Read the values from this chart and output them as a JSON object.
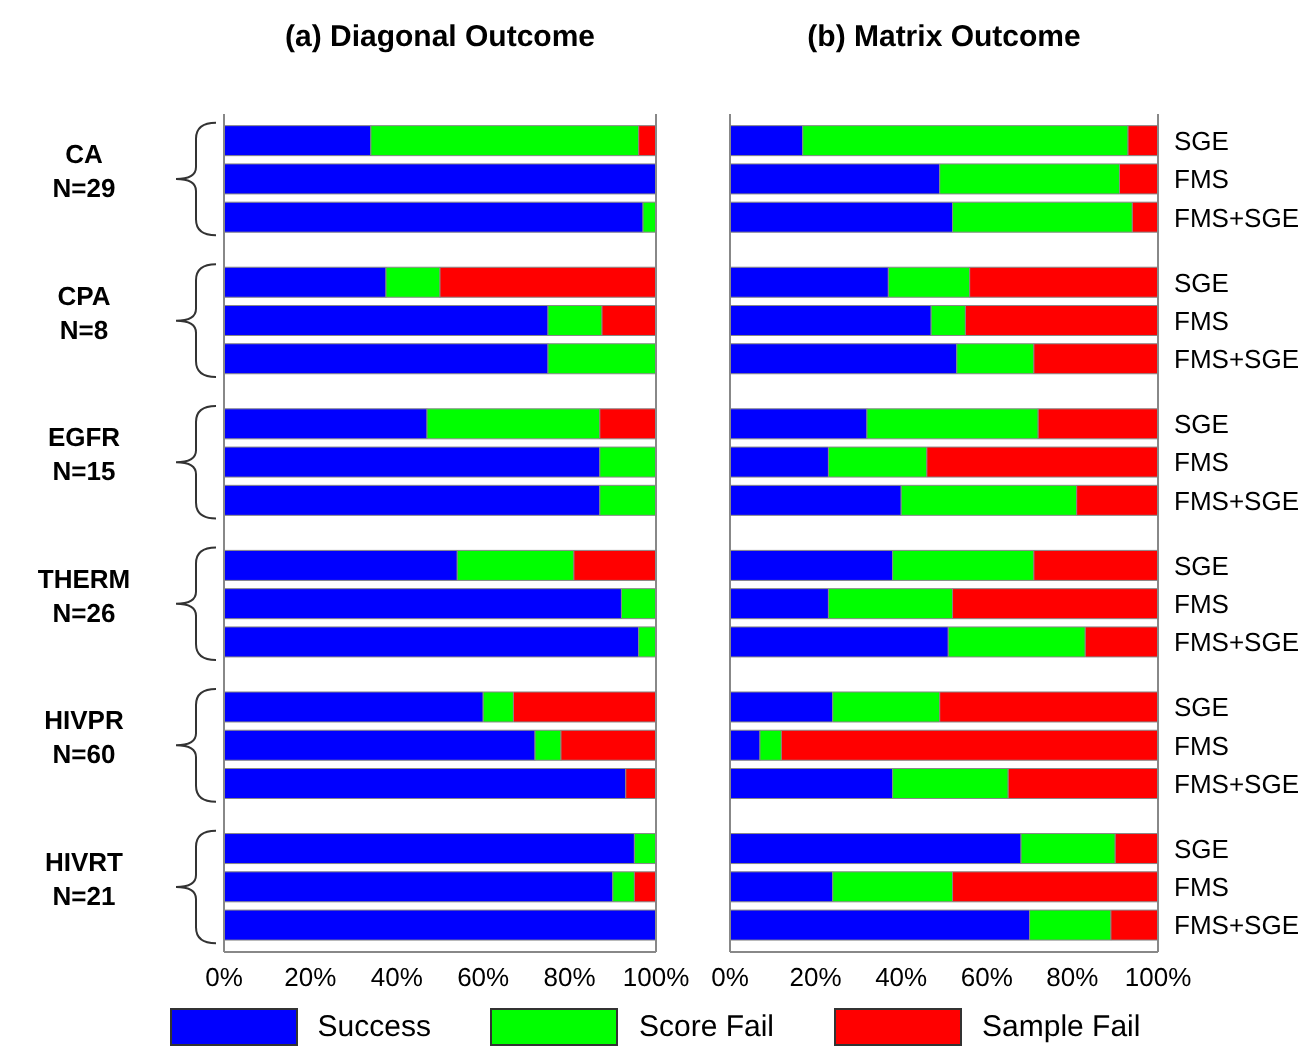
{
  "chart_data": [
    {
      "type": "bar",
      "orientation": "horizontal",
      "stacked": true,
      "title": "(a) Diagonal Outcome",
      "categories": [
        null,
        null,
        null,
        null,
        null,
        null,
        null,
        null,
        null,
        null,
        null,
        null,
        null,
        null,
        null,
        null,
        null,
        null
      ],
      "series": [
        {
          "color": "#0000ff",
          "values": [
            34,
            100,
            97,
            37.5,
            75,
            75,
            47,
            87,
            87,
            54,
            92,
            96,
            60,
            72,
            93,
            95,
            90,
            100
          ]
        },
        {
          "color": "#00ff00",
          "values": [
            62,
            0,
            3,
            12.5,
            12.5,
            25,
            40,
            13,
            13,
            27,
            8,
            4,
            7,
            6,
            0,
            5,
            5,
            0
          ]
        },
        {
          "color": "#ff0000",
          "values": [
            4,
            0,
            0,
            50,
            12.5,
            0,
            13,
            0,
            0,
            19,
            0,
            0,
            33,
            22,
            7,
            0,
            5,
            0
          ]
        }
      ],
      "xlim": [
        0,
        100
      ],
      "xticks": [
        {
          "value": 0,
          "label": "0%"
        },
        {
          "value": 20,
          "label": "20%"
        },
        {
          "value": 40,
          "label": "40%"
        },
        {
          "value": 60,
          "label": "60%"
        },
        {
          "value": 80,
          "label": "80%"
        },
        {
          "value": 100,
          "label": "100%"
        }
      ],
      "tick_labels": "x",
      "annotations": [
        "CA\nN=29",
        "CPA\nN=8",
        "EGFR\nN=15",
        "THERM\nN=26",
        "HIVPR\nN=60",
        "HIVRT\nN=21"
      ]
    },
    {
      "type": "bar",
      "orientation": "horizontal",
      "stacked": true,
      "title": "(b) Matrix Outcome",
      "categories": [
        "SGE",
        "FMS",
        "FMS+SGE",
        "SGE",
        "FMS",
        "FMS+SGE",
        "SGE",
        "FMS",
        "FMS+SGE",
        "SGE",
        "FMS",
        "FMS+SGE",
        "SGE",
        "FMS",
        "FMS+SGE",
        "SGE",
        "FMS",
        "FMS+SGE"
      ],
      "series": [
        {
          "name": "Success",
          "color": "#0000ff",
          "values": [
            17,
            49,
            52,
            37,
            47,
            53,
            32,
            23,
            40,
            38,
            23,
            51,
            24,
            7,
            38,
            68,
            24,
            70
          ]
        },
        {
          "name": "Score Fail",
          "color": "#00ff00",
          "values": [
            76,
            42,
            42,
            19,
            8,
            18,
            40,
            23,
            41,
            33,
            29,
            32,
            25,
            5,
            27,
            22,
            28,
            19
          ]
        },
        {
          "name": "Sample Fail",
          "color": "#ff0000",
          "values": [
            7,
            9,
            6,
            44,
            45,
            29,
            28,
            54,
            19,
            29,
            48,
            17,
            51,
            88,
            35,
            10,
            48,
            11
          ]
        }
      ],
      "xlim": [
        0,
        100
      ],
      "xticks": [
        {
          "value": 0,
          "label": "0%"
        },
        {
          "value": 20,
          "label": "20%"
        },
        {
          "value": 40,
          "label": "40%"
        },
        {
          "value": 60,
          "label": "60%"
        },
        {
          "value": 80,
          "label": "80%"
        },
        {
          "value": 100,
          "label": "100%"
        }
      ],
      "legend": "bottom"
    }
  ]
}
